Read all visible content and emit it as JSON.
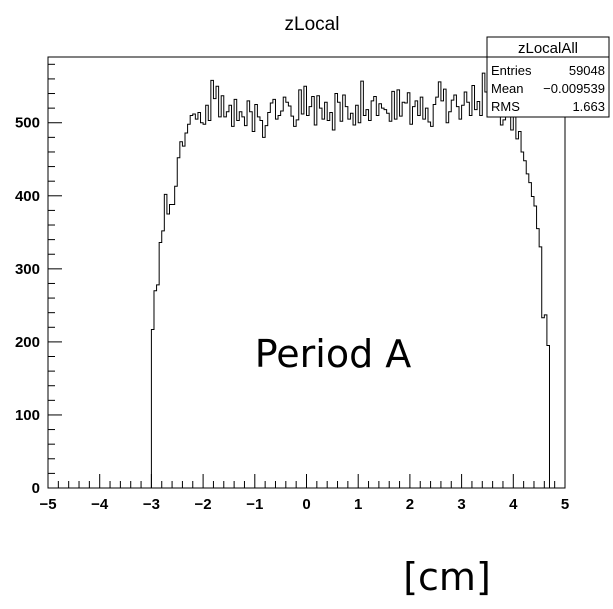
{
  "chart_data": {
    "type": "histogram",
    "title": "zLocal",
    "x_unit_label": "[cm]",
    "annotation": "Period A",
    "xlim": [
      -5,
      5
    ],
    "ylim": [
      0,
      590
    ],
    "x_ticks": [
      "−5",
      "−4",
      "−3",
      "−2",
      "−1",
      "0",
      "1",
      "2",
      "3",
      "4",
      "5"
    ],
    "y_ticks": [
      "0",
      "100",
      "200",
      "300",
      "400",
      "500"
    ],
    "y_tick_values": [
      0,
      100,
      200,
      300,
      400,
      500
    ],
    "stats_box": {
      "name": "zLocalAll",
      "rows": [
        {
          "label": "Entries",
          "value": "59048"
        },
        {
          "label": "Mean",
          "value": "−0.009539"
        },
        {
          "label": "RMS",
          "value": "1.663"
        }
      ]
    },
    "series": [
      {
        "bin_width": 0.05,
        "bin_start": -3.0,
        "values": [
          217,
          270,
          278,
          336,
          352,
          402,
          375,
          388,
          388,
          413,
          452,
          474,
          468,
          486,
          498,
          510,
          512,
          505,
          514,
          500,
          498,
          524,
          503,
          558,
          533,
          550,
          508,
          537,
          508,
          515,
          524,
          495,
          532,
          503,
          515,
          508,
          496,
          530,
          515,
          488,
          525,
          508,
          503,
          480,
          496,
          514,
          527,
          532,
          505,
          510,
          516,
          535,
          528,
          523,
          509,
          495,
          504,
          545,
          512,
          550,
          510,
          522,
          536,
          497,
          537,
          520,
          505,
          528,
          503,
          514,
          490,
          540,
          528,
          502,
          538,
          522,
          505,
          513,
          497,
          524,
          500,
          557,
          510,
          518,
          503,
          530,
          536,
          510,
          526,
          520,
          518,
          513,
          502,
          543,
          505,
          545,
          509,
          528,
          527,
          541,
          498,
          522,
          530,
          510,
          535,
          505,
          520,
          501,
          495,
          525,
          535,
          556,
          530,
          546,
          500,
          515,
          531,
          538,
          522,
          505,
          524,
          542,
          528,
          510,
          551,
          518,
          529,
          510,
          568,
          542,
          530,
          521,
          508,
          548,
          516,
          497,
          504,
          540,
          510,
          490,
          514,
          478,
          488,
          460,
          448,
          430,
          418,
          399,
          386,
          355,
          330,
          233,
          237,
          195
        ]
      }
    ]
  }
}
